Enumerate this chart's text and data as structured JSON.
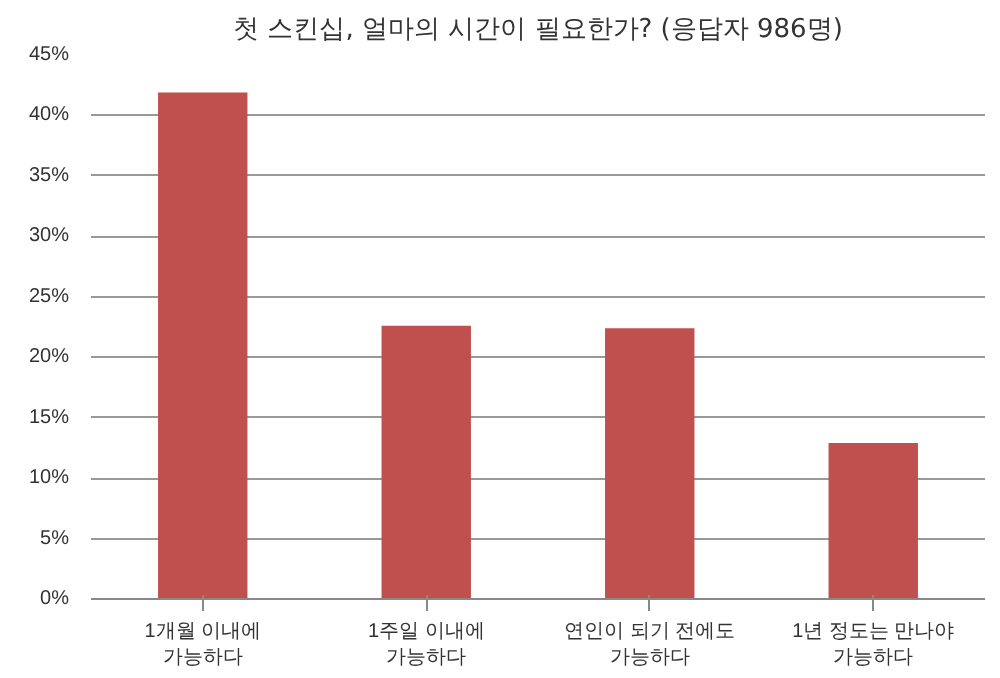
{
  "chart_data": {
    "type": "bar",
    "title": "첫 스킨십, 얼마의 시간이 필요한가? (응답자 986명)",
    "categories": [
      "1개월 이내에 가능하다",
      "1주일 이내에 가능하다",
      "연인이 되기 전에도 가능하다",
      "1년 정도는 만나야 가능하다"
    ],
    "values": [
      41.9,
      22.6,
      22.4,
      12.9
    ],
    "color": "#c0504d",
    "ylim": [
      0,
      45
    ],
    "yticks": [
      {
        "value": 0,
        "label": "0%"
      },
      {
        "value": 5,
        "label": "5%"
      },
      {
        "value": 10,
        "label": "10%"
      },
      {
        "value": 15,
        "label": "15%"
      },
      {
        "value": 20,
        "label": "20%"
      },
      {
        "value": 25,
        "label": "25%"
      },
      {
        "value": 30,
        "label": "30%"
      },
      {
        "value": 35,
        "label": "35%"
      },
      {
        "value": 40,
        "label": "40%"
      },
      {
        "value": 45,
        "label": "45%"
      }
    ],
    "grid": "y"
  }
}
